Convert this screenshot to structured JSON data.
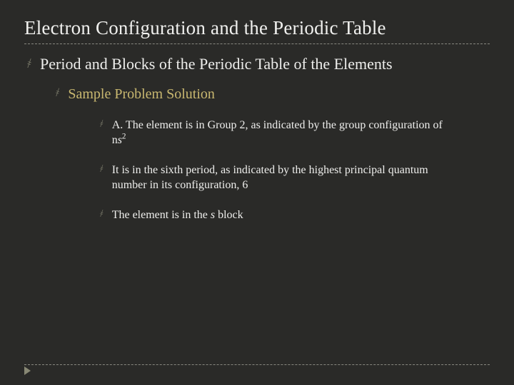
{
  "title": "Electron Configuration and the Periodic Table",
  "bullet_glyph": "҂",
  "colors": {
    "background": "#2a2a28",
    "title_text": "#f0f0ee",
    "body_text": "#eeeeec",
    "accent_text": "#c9b870",
    "bullet_color": "#7a7a6a",
    "dashed_line": "#888880",
    "arrow": "#888874"
  },
  "font_sizes_pt": {
    "title": 20,
    "lvl1": 16,
    "lvl2": 15,
    "lvl3": 12
  },
  "content": {
    "lvl1": "Period and Blocks of the Periodic Table of the Elements",
    "lvl2": "Sample Problem Solution",
    "lvl3": [
      {
        "prefix": "A. The element is in Group 2, as indicated by the group configuration of n",
        "ital": "s",
        "sup": "2",
        "suffix": ""
      },
      {
        "prefix": "It is in the sixth period, as indicated by the highest principal quantum number in its configuration, 6",
        "ital": "",
        "sup": "",
        "suffix": ""
      },
      {
        "prefix": "The element is in the ",
        "ital": "s",
        "sup": "",
        "suffix": " block"
      }
    ]
  }
}
